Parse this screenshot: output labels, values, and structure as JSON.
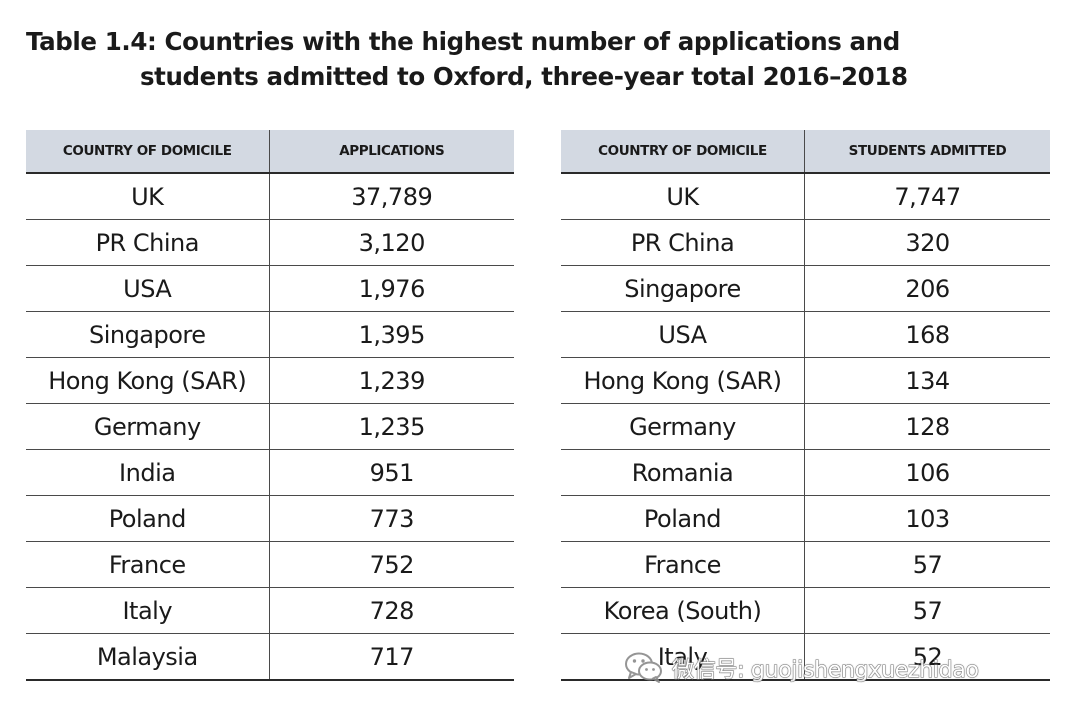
{
  "title": {
    "line1": "Table 1.4: Countries with the highest number of applications and",
    "line2": "students admitted to Oxford, three-year total 2016–2018"
  },
  "applications_table": {
    "headers": [
      "COUNTRY OF DOMICILE",
      "APPLICATIONS"
    ],
    "rows": [
      [
        "UK",
        "37,789"
      ],
      [
        "PR China",
        "3,120"
      ],
      [
        "USA",
        "1,976"
      ],
      [
        "Singapore",
        "1,395"
      ],
      [
        "Hong Kong (SAR)",
        "1,239"
      ],
      [
        "Germany",
        "1,235"
      ],
      [
        "India",
        "951"
      ],
      [
        "Poland",
        "773"
      ],
      [
        "France",
        "752"
      ],
      [
        "Italy",
        "728"
      ],
      [
        "Malaysia",
        "717"
      ]
    ]
  },
  "admitted_table": {
    "headers": [
      "COUNTRY OF DOMICILE",
      "STUDENTS ADMITTED"
    ],
    "rows": [
      [
        "UK",
        "7,747"
      ],
      [
        "PR China",
        "320"
      ],
      [
        "Singapore",
        "206"
      ],
      [
        "USA",
        "168"
      ],
      [
        "Hong Kong (SAR)",
        "134"
      ],
      [
        "Germany",
        "128"
      ],
      [
        "Romania",
        "106"
      ],
      [
        "Poland",
        "103"
      ],
      [
        "France",
        "57"
      ],
      [
        "Korea (South)",
        "57"
      ],
      [
        "Italy",
        "52"
      ]
    ]
  },
  "watermark": {
    "text": "微信号: guojishengxuezhidao",
    "icon": "wechat-icon"
  },
  "colors": {
    "header_fill": "#d3d9e2",
    "text": "#1a1a1a",
    "rule": "#2a2a2a"
  }
}
